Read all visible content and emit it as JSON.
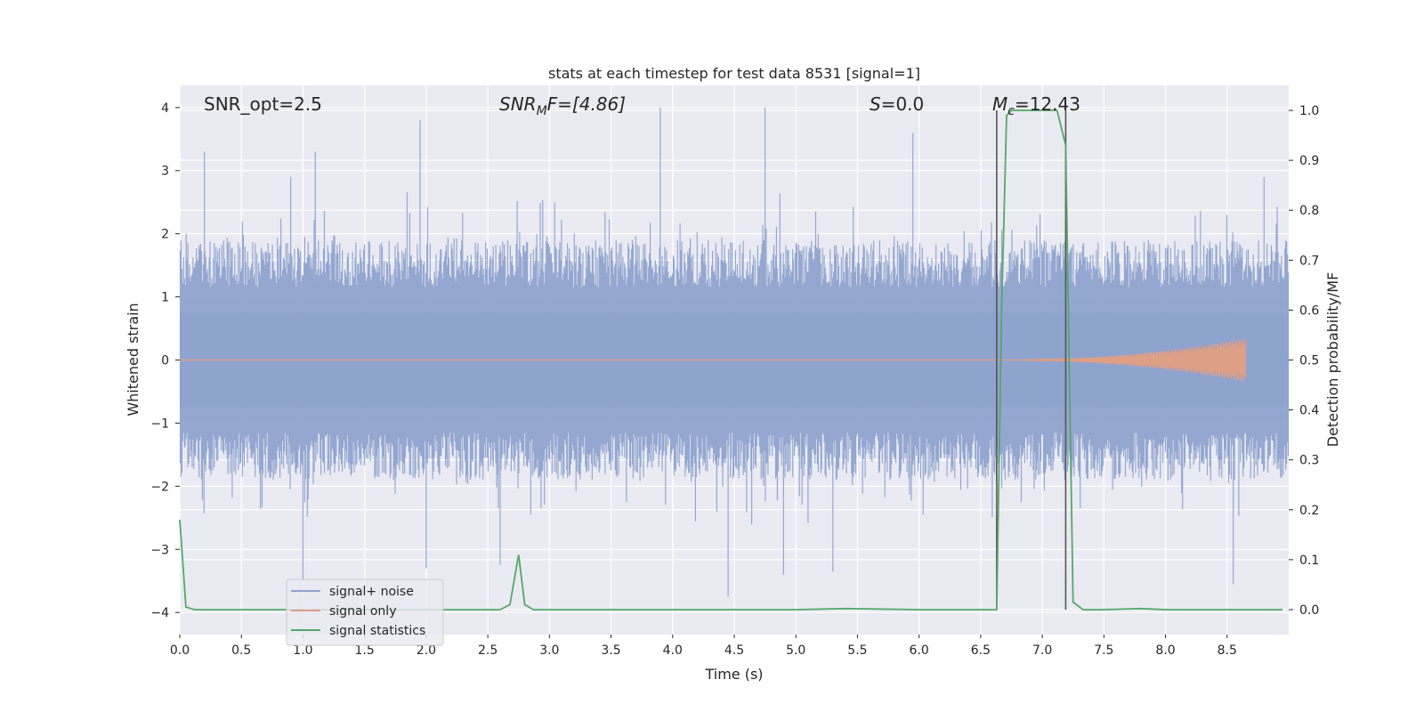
{
  "chart_data": {
    "type": "line",
    "title": "stats at each timestep for test data 8531 [signal=1]",
    "xlabel": "Time (s)",
    "ylabel": "Whitened strain",
    "y2label": "Detection probability/MF",
    "xlim": [
      0.0,
      9.0
    ],
    "ylim": [
      -4.35,
      4.35
    ],
    "y2lim": [
      -0.05,
      1.05
    ],
    "xticks": [
      "0.0",
      "0.5",
      "1.0",
      "1.5",
      "2.0",
      "2.5",
      "3.0",
      "3.5",
      "4.0",
      "4.5",
      "5.0",
      "5.5",
      "6.0",
      "6.5",
      "7.0",
      "7.5",
      "8.0",
      "8.5"
    ],
    "yticks": [
      "4",
      "3",
      "2",
      "1",
      "0",
      "−1",
      "−2",
      "−3",
      "−4"
    ],
    "y2ticks": [
      "1.0",
      "0.9",
      "0.8",
      "0.7",
      "0.6",
      "0.5",
      "0.4",
      "0.3",
      "0.2",
      "0.1",
      "0.0"
    ],
    "grid": true,
    "legend_position": "lower-left",
    "annotations": {
      "snr_opt": "SNR_opt=2.5",
      "snr_mf_main": "SNR",
      "snr_mf_sub": "M",
      "snr_mf_rest": "F=[4.86]",
      "s_main": "S",
      "s_rest": "=0.0",
      "mc_main": "M",
      "mc_sub": "c",
      "mc_rest": "=12.43"
    },
    "markers_x": [
      6.63,
      7.19
    ],
    "series": [
      {
        "name": "signal+ noise",
        "color": "#8fa3cf",
        "description_envelope": {
          "max_typical": 1.7,
          "min_typical": -1.7,
          "peaks": [
            [
              0.2,
              3.3
            ],
            [
              0.9,
              2.9
            ],
            [
              1.1,
              3.3
            ],
            [
              1.95,
              3.8
            ],
            [
              3.9,
              4.0
            ],
            [
              4.75,
              4.0
            ],
            [
              5.95,
              3.6
            ],
            [
              8.8,
              2.9
            ],
            [
              1.0,
              -3.5
            ],
            [
              2.0,
              -3.3
            ],
            [
              4.45,
              -3.75
            ],
            [
              4.9,
              -3.4
            ],
            [
              5.3,
              -3.35
            ],
            [
              8.55,
              -3.55
            ],
            [
              2.6,
              -3.25
            ]
          ]
        }
      },
      {
        "name": "signal only",
        "color": "#dd9f86",
        "chirp_start": 6.6,
        "chirp_end": 8.65,
        "chirp_peak_amplitude": 0.35
      },
      {
        "name": "signal statistics",
        "color": "#55a868",
        "x": [
          0.0,
          0.05,
          0.12,
          0.5,
          1.0,
          1.5,
          2.0,
          2.5,
          2.6,
          2.68,
          2.75,
          2.8,
          2.87,
          3.0,
          4.0,
          5.0,
          5.4,
          6.0,
          6.5,
          6.63,
          6.67,
          6.71,
          6.75,
          7.0,
          7.12,
          7.19,
          7.25,
          7.33,
          7.5,
          7.8,
          8.0,
          8.5,
          8.95
        ],
        "values": [
          0.18,
          0.005,
          0.0,
          0.0,
          0.0,
          0.0,
          0.0,
          0.0,
          0.0,
          0.01,
          0.11,
          0.01,
          0.0,
          0.0,
          0.0,
          0.0,
          0.002,
          0.0,
          0.0,
          0.0,
          0.6,
          0.99,
          1.0,
          1.0,
          1.0,
          0.93,
          0.015,
          0.0,
          0.0,
          0.002,
          0.0,
          0.0,
          0.0
        ]
      }
    ]
  }
}
